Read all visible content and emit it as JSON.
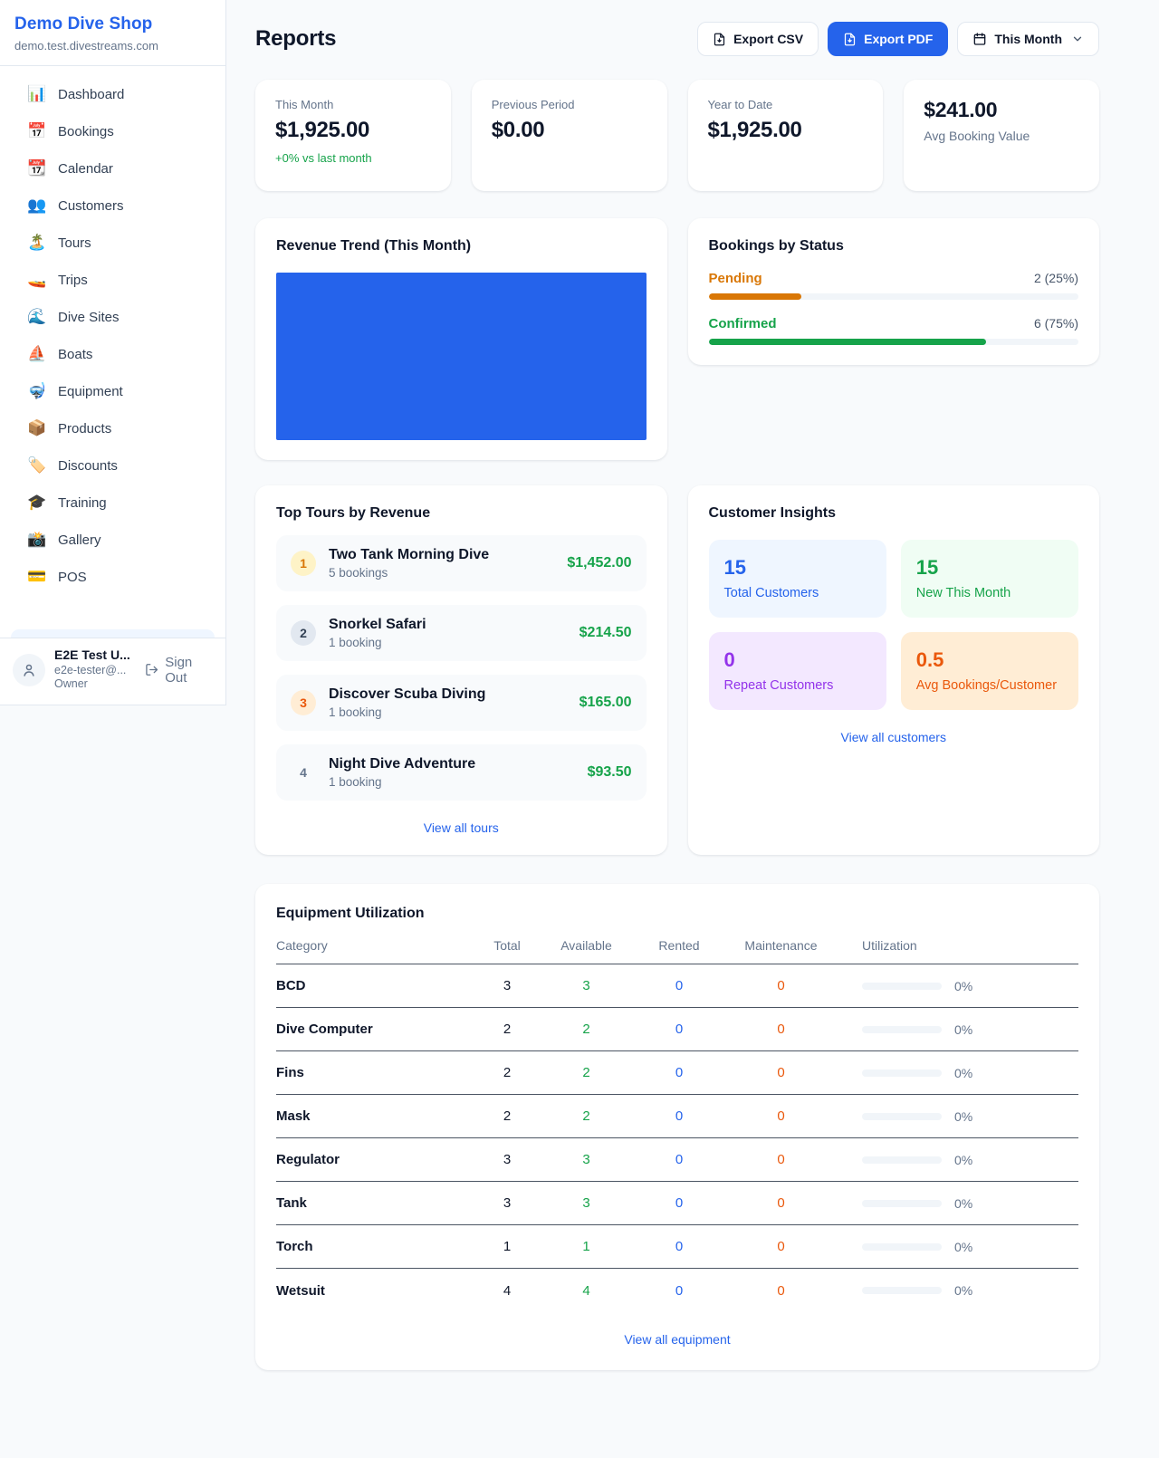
{
  "sidebar": {
    "brand": {
      "name": "Demo Dive Shop",
      "domain": "demo.test.divestreams.com"
    },
    "nav": [
      {
        "icon": "📊",
        "label": "Dashboard"
      },
      {
        "icon": "📅",
        "label": "Bookings"
      },
      {
        "icon": "📆",
        "label": "Calendar"
      },
      {
        "icon": "👥",
        "label": "Customers"
      },
      {
        "icon": "🏝️",
        "label": "Tours"
      },
      {
        "icon": "🚤",
        "label": "Trips"
      },
      {
        "icon": "🌊",
        "label": "Dive Sites"
      },
      {
        "icon": "⛵",
        "label": "Boats"
      },
      {
        "icon": "🤿",
        "label": "Equipment"
      },
      {
        "icon": "📦",
        "label": "Products"
      },
      {
        "icon": "🏷️",
        "label": "Discounts"
      },
      {
        "icon": "🎓",
        "label": "Training"
      },
      {
        "icon": "📸",
        "label": "Gallery"
      },
      {
        "icon": "💳",
        "label": "POS"
      }
    ],
    "user": {
      "name": "E2E Test U...",
      "email": "e2e-tester@...",
      "role": "Owner",
      "sign_out_label": "Sign Out"
    }
  },
  "header": {
    "title": "Reports",
    "export_csv_label": "Export CSV",
    "export_pdf_label": "Export PDF",
    "period_label": "This Month"
  },
  "stats": [
    {
      "label": "This Month",
      "value": "$1,925.00",
      "delta": "+0% vs last month"
    },
    {
      "label": "Previous Period",
      "value": "$0.00"
    },
    {
      "label": "Year to Date",
      "value": "$1,925.00"
    },
    {
      "label": "Avg Booking Value",
      "value": "$241.00"
    }
  ],
  "revenue_trend": {
    "title": "Revenue Trend (This Month)",
    "bar_color": "#2563eb"
  },
  "bookings_by_status": {
    "title": "Bookings by Status",
    "rows": [
      {
        "label": "Pending",
        "count": 2,
        "percent": 25,
        "display": "2 (25%)",
        "color": "#d97706"
      },
      {
        "label": "Confirmed",
        "count": 6,
        "percent": 75,
        "display": "6 (75%)",
        "color": "#16a34a"
      }
    ]
  },
  "top_tours": {
    "title": "Top Tours by Revenue",
    "view_all": "View all tours",
    "rows": [
      {
        "rank": "1",
        "name": "Two Tank Morning Dive",
        "bookings": "5 bookings",
        "revenue": "$1,452.00"
      },
      {
        "rank": "2",
        "name": "Snorkel Safari",
        "bookings": "1 booking",
        "revenue": "$214.50"
      },
      {
        "rank": "3",
        "name": "Discover Scuba Diving",
        "bookings": "1 booking",
        "revenue": "$165.00"
      },
      {
        "rank": "4",
        "name": "Night Dive Adventure",
        "bookings": "1 booking",
        "revenue": "$93.50"
      }
    ]
  },
  "customer_insights": {
    "title": "Customer Insights",
    "view_all": "View all customers",
    "cells": [
      {
        "value": "15",
        "label": "Total Customers",
        "color": "#2563eb",
        "bg": "#eff6ff"
      },
      {
        "value": "15",
        "label": "New This Month",
        "color": "#16a34a",
        "bg": "#f0fdf4"
      },
      {
        "value": "0",
        "label": "Repeat Customers",
        "color": "#9333ea",
        "bg": "#f3e8ff"
      },
      {
        "value": "0.5",
        "label": "Avg Bookings/Customer",
        "color": "#ea580c",
        "bg": "#ffedd5"
      }
    ]
  },
  "equipment": {
    "title": "Equipment Utilization",
    "view_all": "View all equipment",
    "columns": [
      "Category",
      "Total",
      "Available",
      "Rented",
      "Maintenance",
      "Utilization"
    ],
    "rows": [
      {
        "category": "BCD",
        "total": "3",
        "available": "3",
        "rented": "0",
        "maintenance": "0",
        "utilization": "0%"
      },
      {
        "category": "Dive Computer",
        "total": "2",
        "available": "2",
        "rented": "0",
        "maintenance": "0",
        "utilization": "0%"
      },
      {
        "category": "Fins",
        "total": "2",
        "available": "2",
        "rented": "0",
        "maintenance": "0",
        "utilization": "0%"
      },
      {
        "category": "Mask",
        "total": "2",
        "available": "2",
        "rented": "0",
        "maintenance": "0",
        "utilization": "0%"
      },
      {
        "category": "Regulator",
        "total": "3",
        "available": "3",
        "rented": "0",
        "maintenance": "0",
        "utilization": "0%"
      },
      {
        "category": "Tank",
        "total": "3",
        "available": "3",
        "rented": "0",
        "maintenance": "0",
        "utilization": "0%"
      },
      {
        "category": "Torch",
        "total": "1",
        "available": "1",
        "rented": "0",
        "maintenance": "0",
        "utilization": "0%"
      },
      {
        "category": "Wetsuit",
        "total": "4",
        "available": "4",
        "rented": "0",
        "maintenance": "0",
        "utilization": "0%"
      }
    ]
  }
}
